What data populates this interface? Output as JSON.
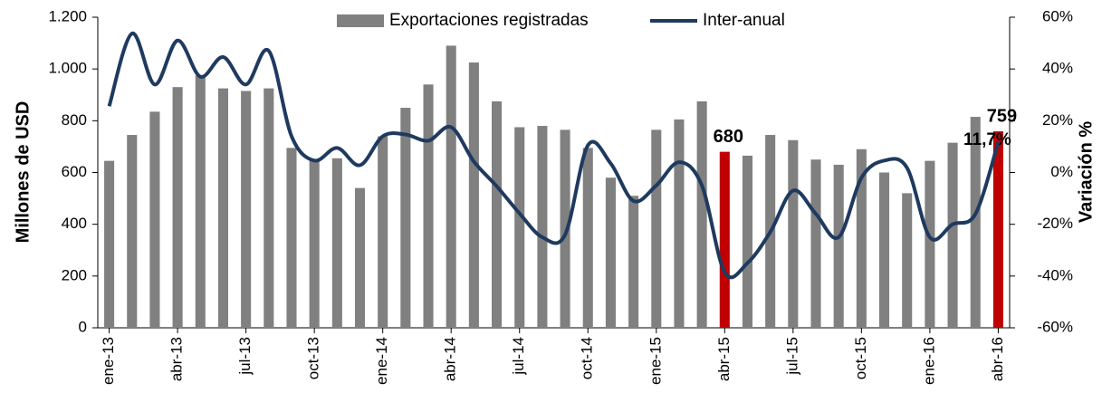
{
  "chart_data": {
    "type": "bar_line",
    "y_label": "Millones de  USD",
    "y2_label": "Variación %",
    "categories": [
      "ene-13",
      null,
      null,
      "abr-13",
      null,
      null,
      "jul-13",
      null,
      null,
      "oct-13",
      null,
      null,
      "ene-14",
      null,
      null,
      "abr-14",
      null,
      null,
      "jul-14",
      null,
      null,
      "oct-14",
      null,
      null,
      "ene-15",
      null,
      null,
      "abr-15",
      null,
      null,
      "jul-15",
      null,
      null,
      "oct-15",
      null,
      null,
      "ene-16",
      null,
      null,
      "abr-16"
    ],
    "series": [
      {
        "name": "Exportaciones  registradas",
        "type": "bar",
        "color": "#808080",
        "colors": [
          "#808080",
          "#808080",
          "#808080",
          "#808080",
          "#808080",
          "#808080",
          "#808080",
          "#808080",
          "#808080",
          "#808080",
          "#808080",
          "#808080",
          "#808080",
          "#808080",
          "#808080",
          "#808080",
          "#808080",
          "#808080",
          "#808080",
          "#808080",
          "#808080",
          "#808080",
          "#808080",
          "#808080",
          "#808080",
          "#808080",
          "#808080",
          "#c00000",
          "#808080",
          "#808080",
          "#808080",
          "#808080",
          "#808080",
          "#808080",
          "#808080",
          "#808080",
          "#808080",
          "#808080",
          "#808080",
          "#c00000"
        ],
        "values": [
          645,
          745,
          835,
          930,
          975,
          925,
          915,
          925,
          695,
          650,
          655,
          540,
          740,
          850,
          940,
          1090,
          1025,
          875,
          775,
          780,
          765,
          695,
          580,
          510,
          765,
          805,
          875,
          680,
          665,
          745,
          725,
          650,
          630,
          690,
          600,
          520,
          645,
          715,
          815,
          759
        ],
        "labeled": [
          27,
          39
        ]
      },
      {
        "name": "Inter-anual",
        "type": "line",
        "axis": "y2",
        "color": "#1f3a5f",
        "values": [
          25.6,
          53.7,
          34,
          51,
          37,
          44.6,
          34,
          47,
          14,
          4.6,
          9.5,
          2.8,
          14,
          14.7,
          12.3,
          17.5,
          4.2,
          -5.3,
          -15.8,
          -25,
          -24,
          10.5,
          3.5,
          -11,
          -5,
          4,
          -5,
          -38.6,
          -35,
          -23,
          -7,
          -16,
          -25,
          -2,
          4.6,
          1.8,
          -25,
          -20,
          -16,
          11.7
        ],
        "value_labels": [
          null,
          null,
          null,
          null,
          null,
          null,
          null,
          null,
          null,
          null,
          null,
          null,
          null,
          null,
          null,
          null,
          null,
          null,
          null,
          null,
          null,
          null,
          null,
          null,
          null,
          null,
          null,
          null,
          null,
          null,
          null,
          null,
          null,
          null,
          null,
          null,
          null,
          null,
          null,
          "11,7%"
        ]
      }
    ],
    "ylim": [
      0,
      1200
    ],
    "yticks": [
      0,
      200,
      400,
      600,
      800,
      {
        "value": 1000,
        "label": "1.000"
      },
      {
        "value": 1200,
        "label": "1.200"
      }
    ],
    "y2lim": [
      -60,
      60
    ],
    "y2ticks": [
      {
        "value": -60,
        "label": "-60%"
      },
      {
        "value": -40,
        "label": "-40%"
      },
      {
        "value": -20,
        "label": "-20%"
      },
      {
        "value": 0,
        "label": "0%"
      },
      {
        "value": 20,
        "label": "20%"
      },
      {
        "value": 40,
        "label": "40%"
      },
      {
        "value": 60,
        "label": "60%"
      }
    ],
    "grid": false,
    "legend": "top"
  }
}
